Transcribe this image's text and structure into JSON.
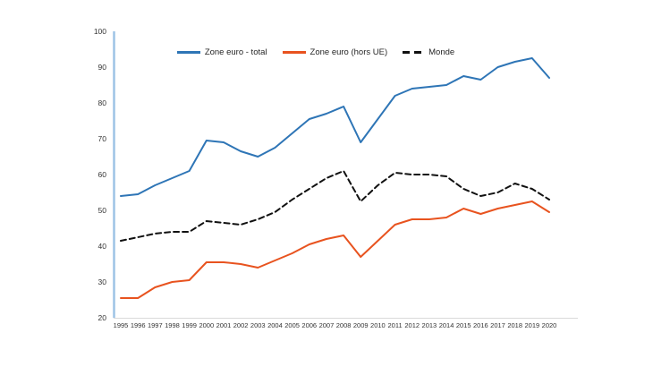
{
  "chart_data": {
    "type": "line",
    "title": "",
    "categories": [
      "1995",
      "1996",
      "1997",
      "1998",
      "1999",
      "2000",
      "2001",
      "2002",
      "2003",
      "2004",
      "2005",
      "2006",
      "2007",
      "2008",
      "2009",
      "2010",
      "2011",
      "2012",
      "2013",
      "2014",
      "2015",
      "2016",
      "2017",
      "2018",
      "2019",
      "2020"
    ],
    "ylim": [
      20,
      100
    ],
    "ytick_step": 10,
    "ytick_labels": [
      "20",
      "30",
      "40",
      "50",
      "60",
      "70",
      "80",
      "90",
      "100"
    ],
    "grid": false,
    "legend_position": "top-center",
    "series": [
      {
        "name": "Zone euro - total",
        "color": "#2E75B6",
        "style": "solid",
        "values": [
          54,
          54.5,
          57,
          59,
          61,
          69.5,
          69,
          66.5,
          65,
          67.5,
          71.5,
          75.5,
          77,
          79,
          69,
          75.5,
          82,
          84,
          84.5,
          85,
          87.5,
          86.5,
          90,
          91.5,
          92.5,
          87
        ]
      },
      {
        "name": "Zone euro (hors UE)",
        "color": "#E8531F",
        "style": "solid",
        "values": [
          25.5,
          25.5,
          28.5,
          30,
          30.5,
          35.5,
          35.5,
          35,
          34,
          36,
          38,
          40.5,
          42,
          43,
          37,
          41.5,
          46,
          47.5,
          47.5,
          48,
          50.5,
          49,
          50.5,
          51.5,
          52.5,
          49.5
        ]
      },
      {
        "name": "Monde",
        "color": "#111111",
        "style": "dashed",
        "values": [
          41.5,
          42.5,
          43.5,
          44,
          44,
          47,
          46.5,
          46,
          47.5,
          49.5,
          53,
          56,
          59,
          61,
          52.5,
          57,
          60.5,
          60,
          60,
          59.5,
          56,
          54,
          55,
          57.5,
          56,
          53
        ]
      }
    ],
    "axis_colors": {
      "y_axis_line": "#9DC3E6",
      "x_axis_line": "#D9D9D9",
      "tick_label_color": "#333333"
    }
  }
}
